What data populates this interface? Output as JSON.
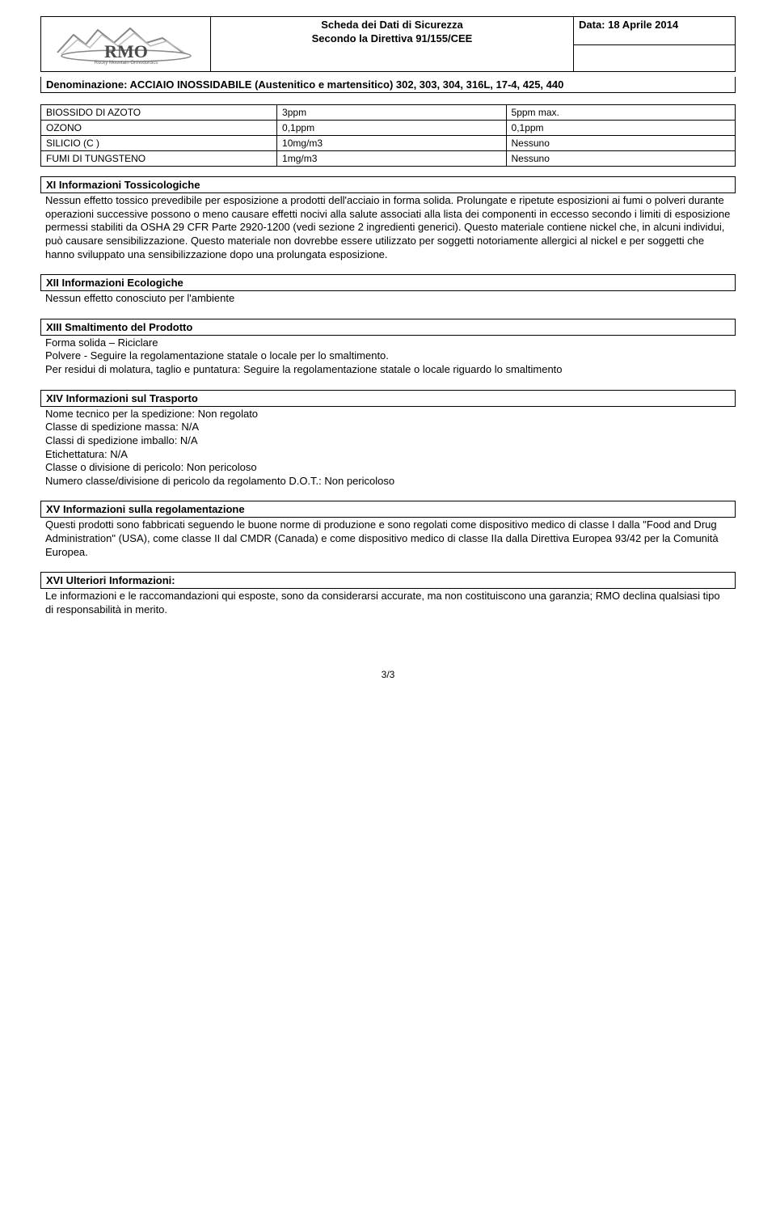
{
  "header": {
    "title_line1": "Scheda dei Dati di Sicurezza",
    "title_line2": "Secondo la Direttiva 91/155/CEE",
    "date": "Data: 18 Aprile 2014",
    "denomination": "Denominazione: ACCIAIO INOSSIDABILE  (Austenitico e martensitico) 302, 303, 304, 316L, 17-4, 425, 440"
  },
  "exposure_table": {
    "rows": [
      {
        "name": "BIOSSIDO DI AZOTO",
        "v1": "3ppm",
        "v2": "5ppm max."
      },
      {
        "name": "OZONO",
        "v1": "0,1ppm",
        "v2": "0,1ppm"
      },
      {
        "name": "SILICIO (C )",
        "v1": "10mg/m3",
        "v2": "Nessuno"
      },
      {
        "name": "FUMI DI TUNGSTENO",
        "v1": "1mg/m3",
        "v2": "Nessuno"
      }
    ]
  },
  "sections": {
    "xi": {
      "title": "XI Informazioni Tossicologiche",
      "body": "Nessun effetto tossico prevedibile per esposizione a prodotti dell'acciaio in forma solida. Prolungate e ripetute esposizioni ai fumi o polveri durante operazioni successive possono o meno causare effetti nocivi alla salute associati alla lista dei componenti in eccesso secondo i limiti di esposizione permessi stabiliti da OSHA 29 CFR Parte 2920-1200 (vedi sezione 2 ingredienti generici). Questo materiale contiene nickel che, in alcuni individui, può causare sensibilizzazione. Questo materiale non dovrebbe essere utilizzato per soggetti notoriamente allergici al nickel e per soggetti che hanno sviluppato una sensibilizzazione dopo una prolungata esposizione."
    },
    "xii": {
      "title": "XII Informazioni Ecologiche",
      "body": "Nessun effetto conosciuto per l'ambiente"
    },
    "xiii": {
      "title": "XIII Smaltimento del Prodotto",
      "body": "Forma solida – Riciclare\nPolvere - Seguire la regolamentazione statale o locale per lo smaltimento.\nPer residui di molatura, taglio e puntatura: Seguire la regolamentazione statale o locale riguardo lo smaltimento"
    },
    "xiv": {
      "title": "XIV Informazioni sul Trasporto",
      "body": "Nome tecnico per la spedizione: Non regolato\nClasse di spedizione massa: N/A\nClassi di spedizione imballo: N/A\nEtichettatura: N/A\nClasse o divisione di pericolo: Non pericoloso\nNumero classe/divisione di pericolo da regolamento D.O.T.: Non pericoloso"
    },
    "xv": {
      "title": "XV Informazioni sulla regolamentazione",
      "body": "Questi prodotti sono fabbricati seguendo le buone norme di produzione e sono regolati come dispositivo medico di classe I dalla \"Food and Drug Administration\" (USA), come classe II dal CMDR (Canada) e come dispositivo medico di classe IIa dalla Direttiva Europea 93/42 per la Comunità Europea."
    },
    "xvi": {
      "title": "XVI Ulteriori Informazioni:",
      "body": "Le informazioni e le raccomandazioni qui esposte, sono da considerarsi accurate, ma non costituiscono una garanzia; RMO declina qualsiasi tipo di responsabilità in merito."
    }
  },
  "footer": {
    "pagenum": "3/3"
  },
  "logo": {
    "brand": "RMO",
    "tagline": "Rocky Mountain Orthodontics"
  }
}
